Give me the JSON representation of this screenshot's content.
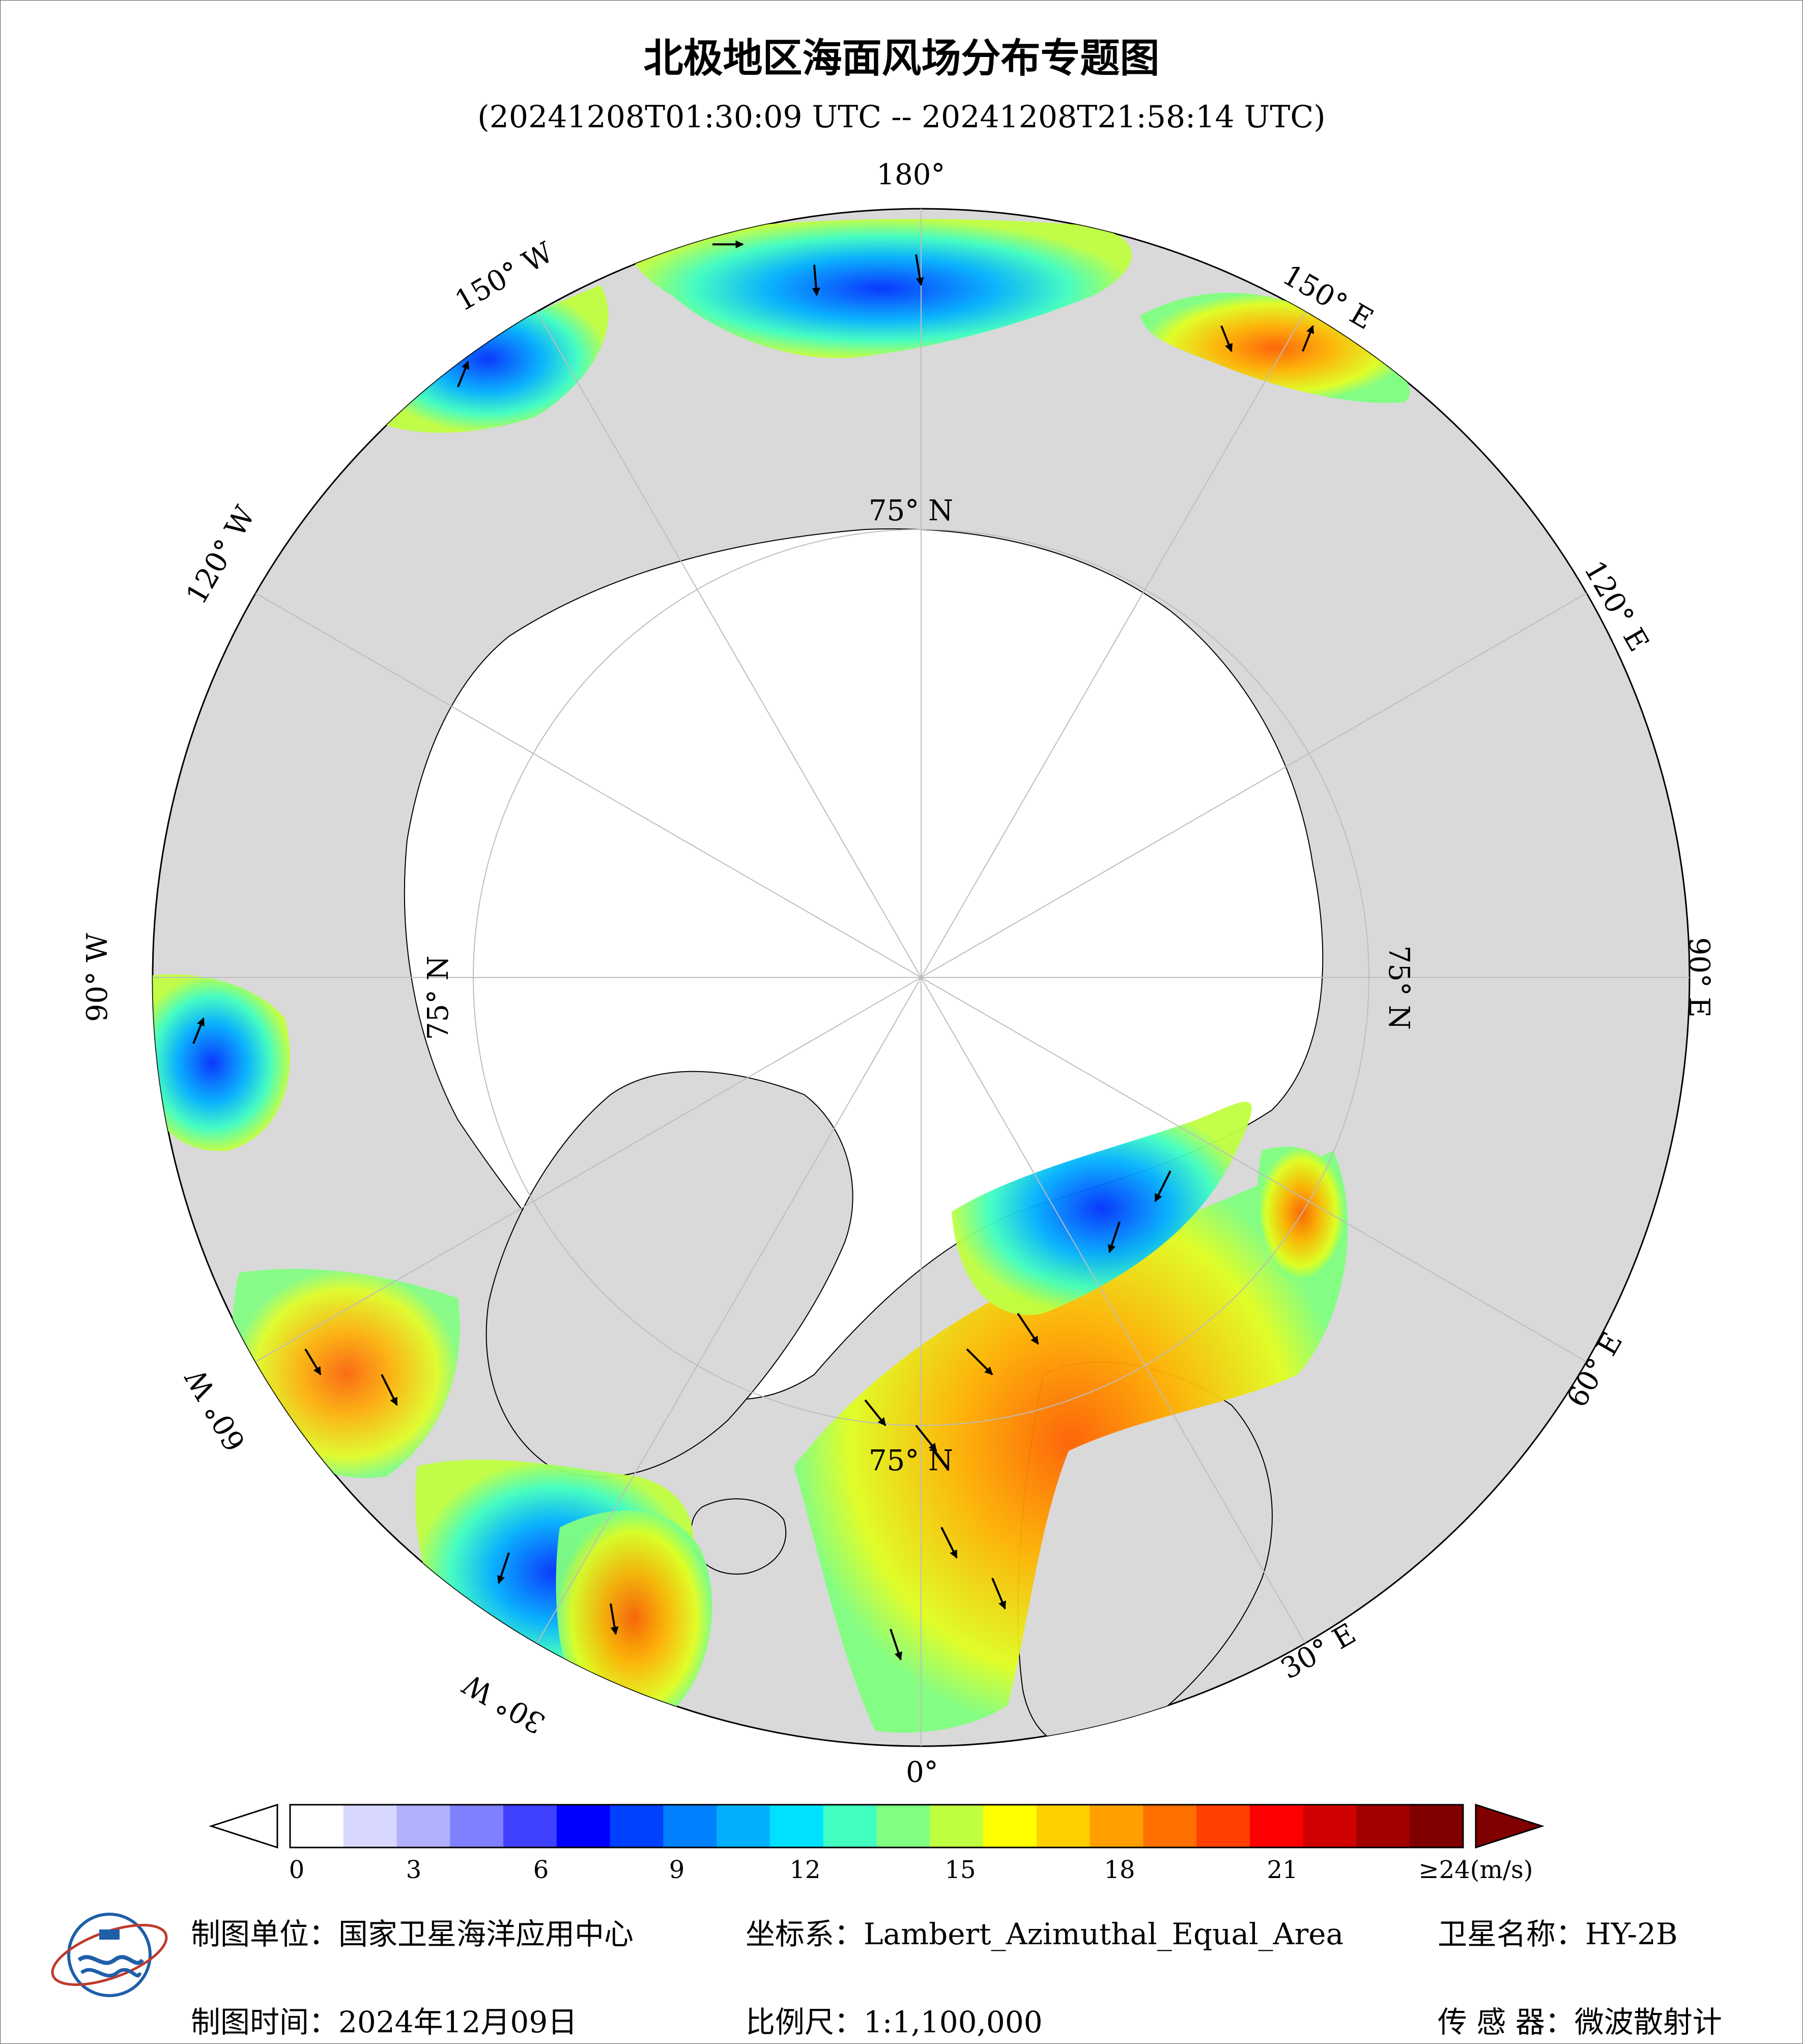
{
  "title": "北极地区海面风场分布专题图",
  "subtitle": "(20241208T01:30:09 UTC -- 20241208T21:58:14 UTC)",
  "map": {
    "projection_labels": {
      "lon_180": "180°",
      "lon_150w": "150° W",
      "lon_150e": "150° E",
      "lon_120w": "120° W",
      "lon_120e": "120° E",
      "lon_90w": "90° W",
      "lon_90e": "90° E",
      "lon_60w": "60° W",
      "lon_60e": "60° E",
      "lon_30w": "30° W",
      "lon_30e": "30° E",
      "lon_0": "0°",
      "lat_75_top": "75° N",
      "lat_75_left": "75° N",
      "lat_75_right": "75° N",
      "lat_75_bottom": "75° N"
    },
    "colors": {
      "ocean_disk": "#d9d9d9",
      "ice": "#ffffff",
      "graticule": "#bdbdbd"
    }
  },
  "colorbar": {
    "unit_label": "(m/s)",
    "ticks": [
      "0",
      "3",
      "6",
      "9",
      "12",
      "15",
      "18",
      "21",
      "≥24(m/s)"
    ],
    "tick_values": [
      0,
      3,
      6,
      9,
      12,
      15,
      18,
      21,
      24
    ],
    "colors": [
      "#ffffff",
      "#d8d8ff",
      "#b0b0ff",
      "#8080ff",
      "#4040ff",
      "#0000ff",
      "#0040ff",
      "#0080ff",
      "#00b0ff",
      "#00e0ff",
      "#40ffc0",
      "#80ff80",
      "#c0ff40",
      "#ffff00",
      "#ffd000",
      "#ffa000",
      "#ff7000",
      "#ff4000",
      "#ff0000",
      "#d00000",
      "#a00000",
      "#800000"
    ]
  },
  "footer": {
    "unit_label": "制图单位：",
    "unit_value": "国家卫星海洋应用中心",
    "crs_label": "坐标系：",
    "crs_value": "Lambert_Azimuthal_Equal_Area",
    "satellite_label": "卫星名称：",
    "satellite_value": "HY-2B",
    "time_label": "制图时间：",
    "time_value": "2024年12月09日",
    "scale_label": "比例尺：",
    "scale_value": "1:1,100,000",
    "sensor_label": "传 感 器：",
    "sensor_value": "微波散射计"
  }
}
